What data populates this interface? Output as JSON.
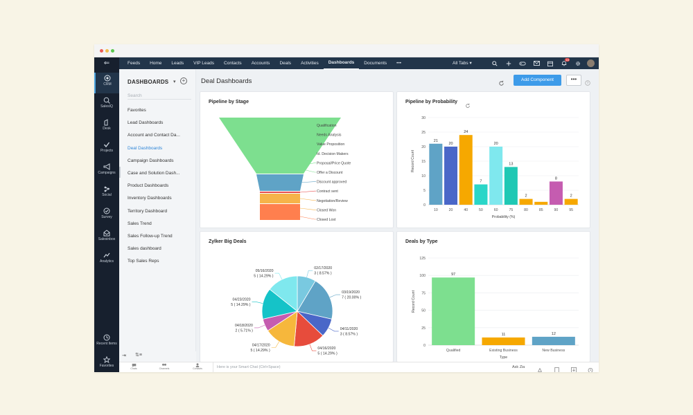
{
  "window": {
    "dots": [
      {
        "name": "close",
        "color": "#ec5f57"
      },
      {
        "name": "minimize",
        "color": "#f4be4f"
      },
      {
        "name": "maximize",
        "color": "#5cc84f"
      }
    ]
  },
  "topnav": {
    "items": [
      "Feeds",
      "Home",
      "Leads",
      "VIP Leads",
      "Contacts",
      "Accounts",
      "Deals",
      "Activities",
      "Dashboards",
      "Documents",
      "•••"
    ],
    "active": "Dashboards",
    "all_tabs": "All Tabs ▾",
    "notification_count": "10"
  },
  "leftrail": {
    "items": [
      {
        "label": "CRM",
        "icon": "crm-icon"
      },
      {
        "label": "SalesIQ",
        "icon": "salesiq-icon"
      },
      {
        "label": "Desk",
        "icon": "desk-icon"
      },
      {
        "label": "Projects",
        "icon": "projects-icon"
      },
      {
        "label": "Campaigns",
        "icon": "campaigns-icon"
      },
      {
        "label": "Social",
        "icon": "social-icon"
      },
      {
        "label": "Survey",
        "icon": "survey-icon"
      },
      {
        "label": "Salesinbox",
        "icon": "salesinbox-icon"
      },
      {
        "label": "Analytics",
        "icon": "analytics-icon"
      }
    ],
    "bottom_items": [
      {
        "label": "Recent Items",
        "icon": "clock-icon"
      },
      {
        "label": "Favorites",
        "icon": "star-icon"
      }
    ]
  },
  "sidebar": {
    "title": "DASHBOARDS",
    "caret": "▾",
    "add": "+",
    "search_placeholder": "Search",
    "items": [
      "Favorites",
      "Lead Dashboards",
      "Account and Contact Da...",
      "Deal Dashboards",
      "Campaign Dashboards",
      "Case and Solution Dash...",
      "Product Dashboards",
      "Inventory Dashboards",
      "Territory Dashboard",
      "Sales Trend",
      "Sales Follow-up Trend",
      "Sales dashboard",
      "Top Sales Reps"
    ],
    "active_index": 3
  },
  "main": {
    "title": "Deal Dashboards",
    "add_component": "Add Component",
    "more": "•••",
    "help": "?"
  },
  "chart_data": [
    {
      "type": "funnel",
      "title": "Pipeline by Stage",
      "stages": [
        {
          "label": "Qualification",
          "color": "#7ddf8f"
        },
        {
          "label": "Needs Analysis",
          "color": "#7ddf8f"
        },
        {
          "label": "Value Proposition",
          "color": "#7ddf8f"
        },
        {
          "label": "Id. Decision Makers",
          "color": "#7ddf8f"
        },
        {
          "label": "Proposal/Price Quote",
          "color": "#7ddf8f"
        },
        {
          "label": "Offer a Discount",
          "color": "#7ddf8f"
        },
        {
          "label": "Discount approved",
          "color": "#5fa3c6"
        },
        {
          "label": "Contract sent",
          "color": "#e74c4c"
        },
        {
          "label": "Negotiation/Review",
          "color": "#f6b34a"
        },
        {
          "label": "Closed Won",
          "color": "#f6b34a"
        },
        {
          "label": "Closed Lost",
          "color": "#ff7f4e"
        }
      ]
    },
    {
      "type": "bar",
      "title": "Pipeline by Probability",
      "categories": [
        "10",
        "20",
        "40",
        "50",
        "60",
        "75",
        "80",
        "85",
        "90",
        "95"
      ],
      "values": [
        21,
        20,
        24,
        7,
        20,
        13,
        2,
        1,
        8,
        2
      ],
      "colors": [
        "#5fa3c6",
        "#4a67c8",
        "#f6a800",
        "#2ad6c8",
        "#7fe8ee",
        "#1fc8b4",
        "#f6a800",
        "#f6a800",
        "#c55cb0",
        "#f6a800"
      ],
      "data_labels": [
        "21",
        "20",
        "24",
        "7",
        "20",
        "13",
        "2",
        "",
        "8",
        "2"
      ],
      "xlabel": "Probability (%)",
      "ylabel": "Record Count",
      "ylim": [
        0,
        30
      ],
      "yticks": [
        0,
        5,
        10,
        15,
        20,
        25,
        30
      ],
      "grid": true
    },
    {
      "type": "pie",
      "title": "Zylker Big Deals",
      "slices": [
        {
          "date": "02/17/2020",
          "value": 3,
          "pct": "8.57%",
          "label2": "3 ( 8.57% )",
          "color": "#79c9e0"
        },
        {
          "date": "03/19/2020",
          "value": 7,
          "pct": "20.00%",
          "label2": "7 ( 20.00% )",
          "color": "#5fa3c6"
        },
        {
          "date": "04/11/2020",
          "value": 3,
          "pct": "8.57%",
          "label2": "3 ( 8.57% )",
          "color": "#4a67c8"
        },
        {
          "date": "04/16/2020",
          "value": 5,
          "pct": "14.29%",
          "label2": "5 ( 14.29% )",
          "color": "#e74c3c"
        },
        {
          "date": "04/17/2020",
          "value": 5,
          "pct": "14.29%",
          "label2": "5 ( 14.29% )",
          "color": "#f6b73c"
        },
        {
          "date": "04/18/2020",
          "value": 2,
          "pct": "5.71%",
          "label2": "2 ( 5.71% )",
          "color": "#c55cb0"
        },
        {
          "date": "04/23/2020",
          "value": 5,
          "pct": "14.29%",
          "label2": "5 ( 14.29% )",
          "color": "#15c3c8"
        },
        {
          "date": "05/16/2020",
          "value": 5,
          "pct": "14.29%",
          "label2": "5 ( 14.29% )",
          "color": "#7fe8ee"
        }
      ]
    },
    {
      "type": "bar",
      "title": "Deals by Type",
      "categories": [
        "Qualified",
        "Existing Business",
        "New Business"
      ],
      "values": [
        97,
        11,
        12
      ],
      "colors": [
        "#7ddf8f",
        "#f6a800",
        "#5fa3c6"
      ],
      "data_labels": [
        "97",
        "11",
        "12"
      ],
      "xlabel": "Type",
      "ylabel": "Record Count",
      "ylim": [
        0,
        125
      ],
      "yticks": [
        0,
        25,
        50,
        75,
        100,
        125
      ],
      "grid": true
    }
  ],
  "bottombar": {
    "items": [
      "Chats",
      "Channels",
      "Contacts"
    ],
    "smart_chat_placeholder": "Here is your Smart Chat (Ctrl+Space)",
    "ask_zia": "Ask Zia"
  }
}
